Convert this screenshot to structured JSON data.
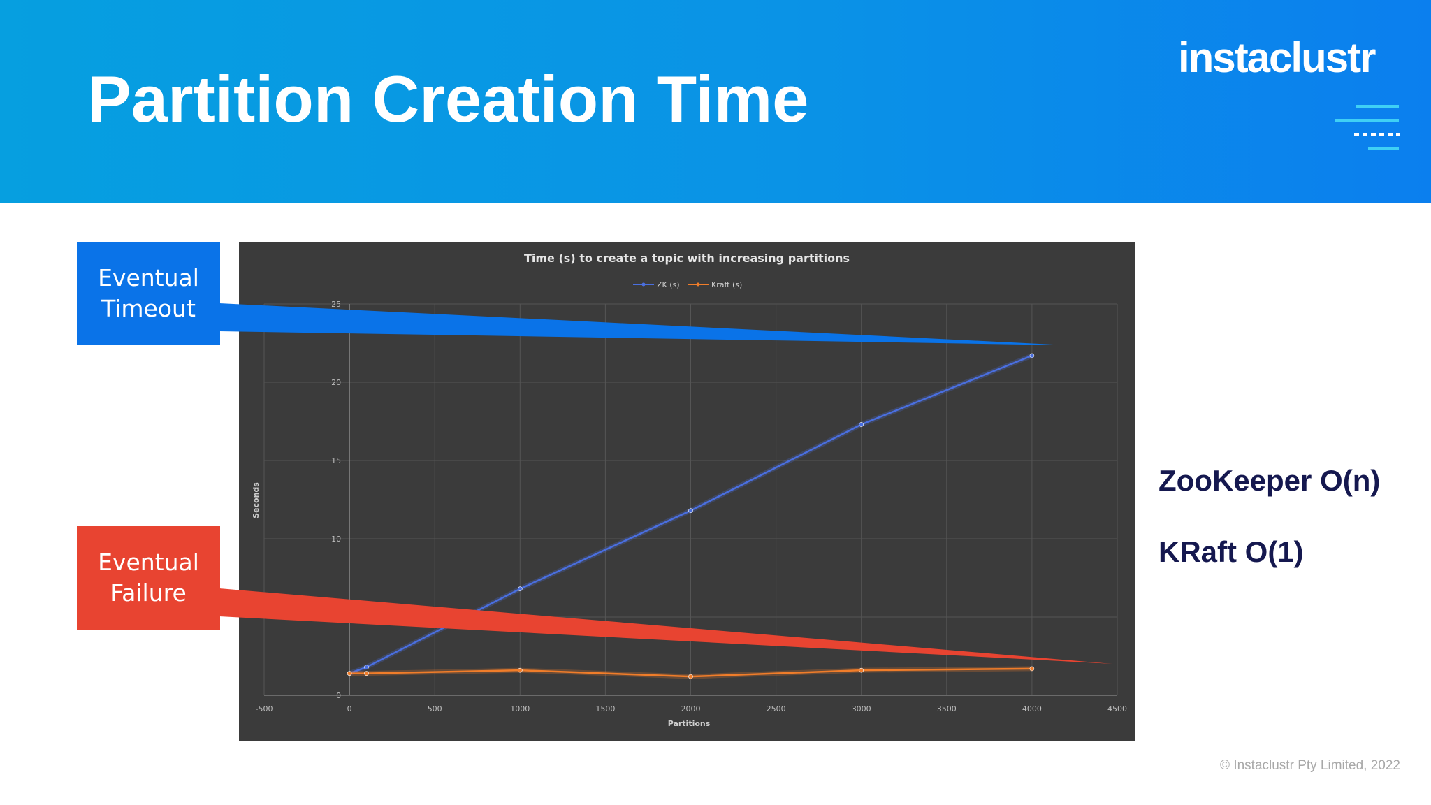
{
  "slide": {
    "title": "Partition Creation Time",
    "logo": "instaclustr",
    "copyright": "© Instaclustr Pty Limited, 2022"
  },
  "callouts": {
    "timeout": {
      "line1": "Eventual",
      "line2": "Timeout",
      "color": "#0a73e8"
    },
    "failure": {
      "line1": "Eventual",
      "line2": "Failure",
      "color": "#e84431"
    }
  },
  "complexity": {
    "zookeeper": "ZooKeeper O(n)",
    "kraft": "KRaft O(1)"
  },
  "chart_data": {
    "type": "line",
    "title": "Time (s) to create a topic with increasing partitions",
    "xlabel": "Partitions",
    "ylabel": "Seconds",
    "xlim": [
      -500,
      4500
    ],
    "ylim": [
      0,
      25
    ],
    "xticks": [
      -500,
      0,
      500,
      1000,
      1500,
      2000,
      2500,
      3000,
      3500,
      4000,
      4500
    ],
    "yticks": [
      0,
      5,
      10,
      15,
      20,
      25
    ],
    "grid": true,
    "legend": "top-center",
    "series": [
      {
        "name": "ZK (s)",
        "color": "#4a6fe0",
        "x": [
          0,
          100,
          1000,
          2000,
          3000,
          4000
        ],
        "y": [
          1.4,
          1.8,
          6.8,
          11.8,
          17.3,
          21.7
        ]
      },
      {
        "name": "Kraft (s)",
        "color": "#f07d2a",
        "x": [
          0,
          100,
          1000,
          2000,
          3000,
          4000
        ],
        "y": [
          1.4,
          1.4,
          1.6,
          1.2,
          1.6,
          1.7
        ]
      }
    ]
  }
}
